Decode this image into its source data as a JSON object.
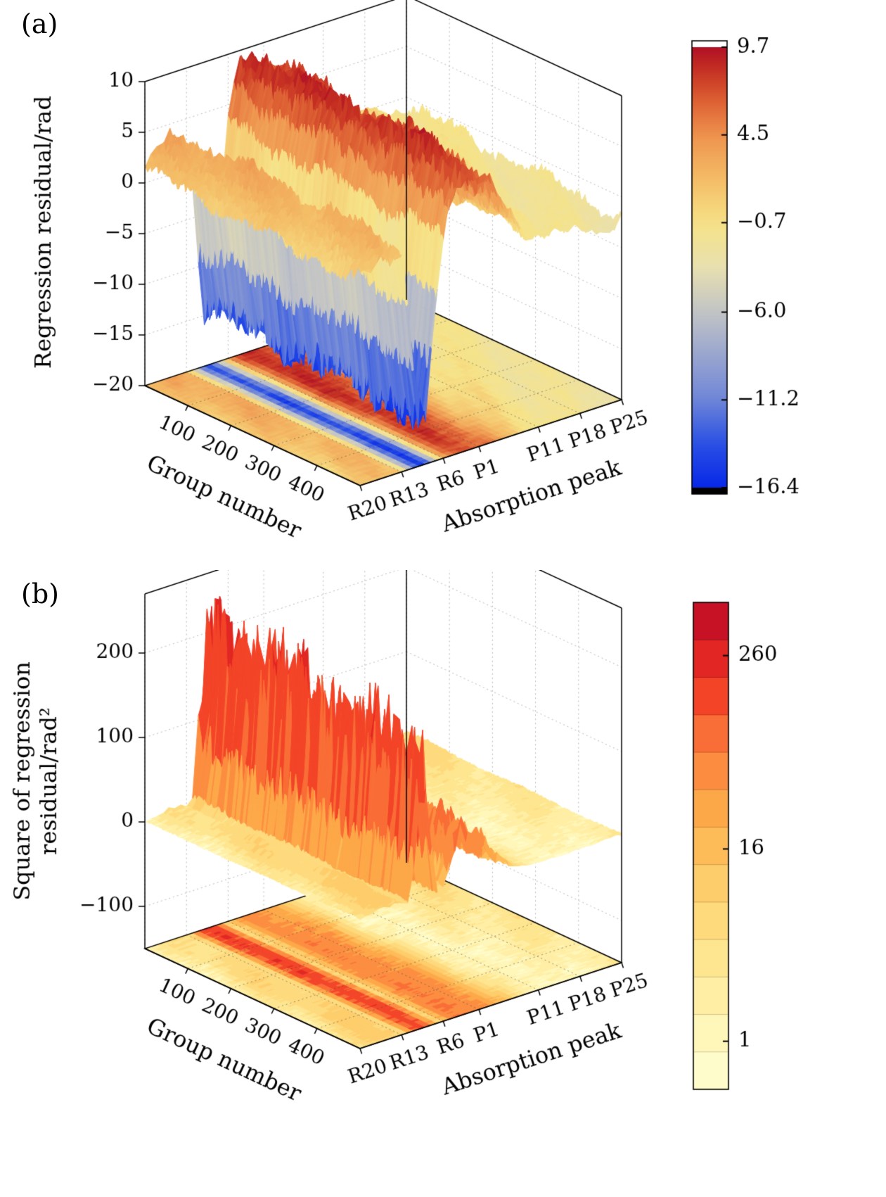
{
  "figure": {
    "background": "#ffffff"
  },
  "chart_data": [
    {
      "type": "surface3d",
      "panel_label": "(a)",
      "xlabel": "Group number",
      "ylabel": "Absorption peak",
      "zlabel": "Regression residual/rad",
      "x_tick_values": [
        100,
        200,
        300,
        400
      ],
      "x_tick_labels": [
        "100",
        "200",
        "300",
        "400"
      ],
      "x_max": 500,
      "y_tick_labels": [
        "R20",
        "R13",
        "R6",
        "P1",
        "P11",
        "P18",
        "P25"
      ],
      "y_tick_index": [
        0,
        7,
        14,
        20,
        30,
        37,
        44
      ],
      "n_peaks": 45,
      "n_groups": 160,
      "z_tick_values": [
        10,
        5,
        0,
        -5,
        -10,
        -15,
        -20
      ],
      "z_tick_labels": [
        "10",
        "5",
        "0",
        "−5",
        "−10",
        "−15",
        "−20"
      ],
      "z_min": -20,
      "z_max": 10,
      "group_slope": -1.3,
      "noise_base": 0.5,
      "noise_scale": 0.09,
      "peak_profile": [
        1.5,
        1.9,
        2.3,
        2.8,
        3.4,
        2.9,
        3.6,
        2.6,
        -2.0,
        -8.0,
        -13.5,
        -13.8,
        -9.0,
        -2.5,
        3.0,
        6.0,
        8.0,
        9.2,
        9.0,
        8.2,
        7.5,
        7.8,
        6.5,
        5.2,
        4.0,
        3.0,
        2.2,
        1.6,
        1.2,
        0.8,
        0.5,
        0.8,
        0.3,
        0.0,
        -0.3,
        -0.5,
        -0.2,
        -0.6,
        -0.8,
        -0.5,
        -0.9,
        -1.0,
        -0.7,
        -1.1,
        -0.8
      ],
      "colorbar": {
        "style": "continuous",
        "scale": "linear",
        "vmin": -16.4,
        "vmax": 9.7,
        "tick_values": [
          9.7,
          4.5,
          -0.7,
          -6.0,
          -11.2,
          -16.4
        ],
        "tick_labels": [
          "9.7",
          "4.5",
          "−0.7",
          "−6.0",
          "−11.2",
          "−16.4"
        ],
        "colormap_name": "blue-yellow-red",
        "stops": [
          [
            0.0,
            "#0828e8"
          ],
          [
            0.1,
            "#2a50e4"
          ],
          [
            0.2,
            "#6f86d8"
          ],
          [
            0.3,
            "#9aa6cf"
          ],
          [
            0.4,
            "#c2c4c6"
          ],
          [
            0.5,
            "#e8e0b0"
          ],
          [
            0.6,
            "#f6e388"
          ],
          [
            0.7,
            "#f4bc66"
          ],
          [
            0.8,
            "#ee934e"
          ],
          [
            0.88,
            "#dd5f33"
          ],
          [
            0.95,
            "#c52f22"
          ],
          [
            1.0,
            "#b01126"
          ]
        ]
      }
    },
    {
      "type": "surface3d",
      "panel_label": "(b)",
      "xlabel": "Group number",
      "ylabel": "Absorption peak",
      "zlabel_lines": [
        "Square of regression",
        "residual/rad²"
      ],
      "x_tick_values": [
        100,
        200,
        300,
        400
      ],
      "x_tick_labels": [
        "100",
        "200",
        "300",
        "400"
      ],
      "x_max": 500,
      "y_tick_labels": [
        "R20",
        "R13",
        "R6",
        "P1",
        "P11",
        "P18",
        "P25"
      ],
      "y_tick_index": [
        0,
        7,
        14,
        20,
        30,
        37,
        44
      ],
      "n_peaks": 45,
      "n_groups": 160,
      "z_tick_values": [
        200,
        100,
        0,
        -100
      ],
      "z_tick_labels": [
        "200",
        "100",
        "0",
        "−100"
      ],
      "z_min": -150,
      "z_max": 270,
      "group_slope": -1.3,
      "derived_from": "square of panel (a) regression residual",
      "colorbar": {
        "style": "discrete",
        "scale": "log",
        "log_min": 0.5,
        "log_max": 560,
        "bands": 13,
        "tick_values": [
          260,
          16,
          1
        ],
        "tick_labels": [
          "260",
          "16",
          "1"
        ],
        "colormap_name": "yellow-orange-red",
        "stops": [
          [
            0.0,
            "#ffffd6"
          ],
          [
            0.15,
            "#fff3b0"
          ],
          [
            0.3,
            "#fee187"
          ],
          [
            0.45,
            "#fec965"
          ],
          [
            0.58,
            "#fda747"
          ],
          [
            0.7,
            "#fc7d3c"
          ],
          [
            0.82,
            "#f23d26"
          ],
          [
            0.92,
            "#d81a21"
          ],
          [
            1.0,
            "#b50b26"
          ]
        ]
      }
    }
  ]
}
